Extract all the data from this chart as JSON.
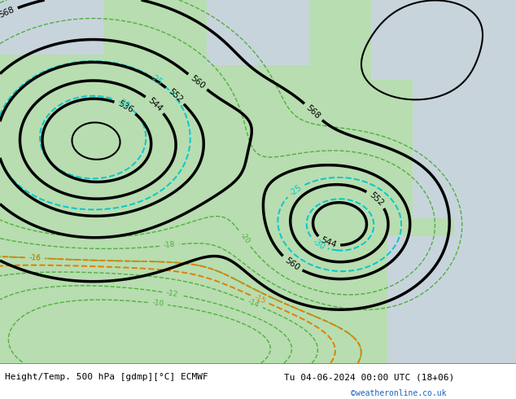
{
  "title_left": "Height/Temp. 500 hPa [gdmp][°C] ECMWF",
  "title_right": "Tu 04-06-2024 00:00 UTC (18+06)",
  "watermark": "©weatheronline.co.uk",
  "bg_land": "#b8ddb0",
  "bg_sea": "#c8d4dc",
  "bg_white": "#ffffff",
  "z500_color": "#000000",
  "temp_cyan": "#00c8d0",
  "temp_green": "#50b040",
  "temp_orange": "#e08000",
  "figsize": [
    6.34,
    4.9
  ],
  "dpi": 100,
  "font_size": 8
}
